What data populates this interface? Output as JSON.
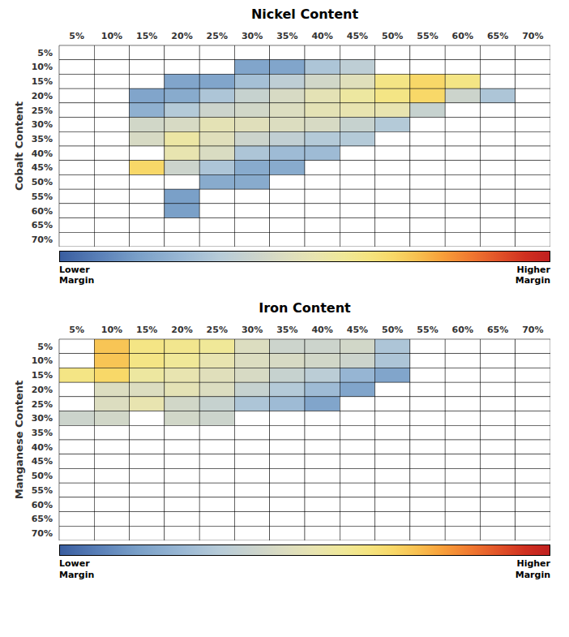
{
  "chart_data": [
    {
      "type": "heatmap",
      "title": "Nickel Content",
      "ylabel": "Cobalt Content",
      "categories": [
        "5%",
        "10%",
        "15%",
        "20%",
        "25%",
        "30%",
        "35%",
        "40%",
        "45%",
        "50%",
        "55%",
        "60%",
        "65%",
        "70%"
      ],
      "y_categories": [
        "5%",
        "10%",
        "15%",
        "20%",
        "25%",
        "30%",
        "35%",
        "40%",
        "45%",
        "50%",
        "55%",
        "60%",
        "65%",
        "70%"
      ],
      "values": [
        [
          null,
          null,
          null,
          null,
          null,
          null,
          null,
          null,
          null,
          null,
          null,
          null,
          null,
          null
        ],
        [
          null,
          null,
          null,
          null,
          null,
          0.18,
          0.18,
          0.3,
          0.35,
          null,
          null,
          null,
          null,
          null
        ],
        [
          null,
          null,
          null,
          0.18,
          0.18,
          0.28,
          0.35,
          0.42,
          0.48,
          0.62,
          0.68,
          0.62,
          null,
          null
        ],
        [
          null,
          null,
          0.18,
          0.2,
          0.3,
          0.38,
          0.44,
          0.5,
          0.56,
          0.62,
          0.68,
          0.4,
          0.3,
          null
        ],
        [
          null,
          null,
          0.22,
          0.32,
          0.4,
          0.42,
          0.46,
          0.5,
          0.52,
          0.52,
          0.38,
          null,
          null,
          null
        ],
        [
          null,
          null,
          0.42,
          0.44,
          0.5,
          0.48,
          0.46,
          0.44,
          0.38,
          0.32,
          null,
          null,
          null,
          null
        ],
        [
          null,
          null,
          0.44,
          0.55,
          0.48,
          0.4,
          0.36,
          0.32,
          0.32,
          null,
          null,
          null,
          null,
          null
        ],
        [
          null,
          null,
          null,
          0.52,
          0.45,
          0.3,
          0.26,
          0.26,
          null,
          null,
          null,
          null,
          null,
          null
        ],
        [
          null,
          null,
          0.68,
          0.4,
          0.3,
          0.2,
          0.2,
          null,
          null,
          null,
          null,
          null,
          null,
          null
        ],
        [
          null,
          null,
          null,
          null,
          0.2,
          0.2,
          null,
          null,
          null,
          null,
          null,
          null,
          null,
          null
        ],
        [
          null,
          null,
          null,
          0.16,
          null,
          null,
          null,
          null,
          null,
          null,
          null,
          null,
          null,
          null
        ],
        [
          null,
          null,
          null,
          0.16,
          null,
          null,
          null,
          null,
          null,
          null,
          null,
          null,
          null,
          null
        ],
        [
          null,
          null,
          null,
          null,
          null,
          null,
          null,
          null,
          null,
          null,
          null,
          null,
          null,
          null
        ],
        [
          null,
          null,
          null,
          null,
          null,
          null,
          null,
          null,
          null,
          null,
          null,
          null,
          null,
          null
        ]
      ],
      "colorscale": [
        [
          0.0,
          "#3a5ea0"
        ],
        [
          0.08,
          "#5a80b8"
        ],
        [
          0.16,
          "#7aa0c8"
        ],
        [
          0.25,
          "#9ab8d4"
        ],
        [
          0.33,
          "#b8ccd8"
        ],
        [
          0.4,
          "#ccd4cc"
        ],
        [
          0.46,
          "#dcddc0"
        ],
        [
          0.52,
          "#e8e4b0"
        ],
        [
          0.58,
          "#f0e898"
        ],
        [
          0.63,
          "#f5e480"
        ],
        [
          0.68,
          "#f8d868"
        ],
        [
          0.73,
          "#f8c050"
        ],
        [
          0.78,
          "#f8a03a"
        ],
        [
          0.84,
          "#f07830"
        ],
        [
          0.9,
          "#e05028"
        ],
        [
          0.95,
          "#d03020"
        ],
        [
          1.0,
          "#c02020"
        ]
      ],
      "colorbar": {
        "range": [
          0,
          1
        ],
        "label_low": "Lower\nMargin",
        "label_high": "Higher\nMargin"
      }
    },
    {
      "type": "heatmap",
      "title": "Iron Content",
      "ylabel": "Manganese Content",
      "categories": [
        "5%",
        "10%",
        "15%",
        "20%",
        "25%",
        "30%",
        "35%",
        "40%",
        "45%",
        "50%",
        "55%",
        "60%",
        "65%",
        "70%"
      ],
      "y_categories": [
        "5%",
        "10%",
        "15%",
        "20%",
        "25%",
        "30%",
        "35%",
        "40%",
        "45%",
        "50%",
        "55%",
        "60%",
        "65%",
        "70%"
      ],
      "values": [
        [
          null,
          0.72,
          0.62,
          0.6,
          0.58,
          0.46,
          0.4,
          0.4,
          0.42,
          0.3,
          null,
          null,
          null,
          null
        ],
        [
          null,
          0.72,
          0.62,
          0.58,
          0.52,
          0.46,
          0.44,
          0.42,
          0.4,
          0.3,
          null,
          null,
          null,
          null
        ],
        [
          0.62,
          0.68,
          0.56,
          0.52,
          0.48,
          0.44,
          0.38,
          0.34,
          0.24,
          0.18,
          null,
          null,
          null,
          null
        ],
        [
          null,
          0.46,
          0.46,
          0.5,
          0.46,
          0.38,
          0.32,
          0.26,
          0.18,
          null,
          null,
          null,
          null,
          null
        ],
        [
          null,
          0.46,
          0.52,
          0.42,
          0.38,
          0.3,
          0.26,
          0.18,
          null,
          null,
          null,
          null,
          null,
          null
        ],
        [
          0.4,
          0.42,
          null,
          0.42,
          0.4,
          null,
          null,
          null,
          null,
          null,
          null,
          null,
          null,
          null
        ],
        [
          null,
          null,
          null,
          null,
          null,
          null,
          null,
          null,
          null,
          null,
          null,
          null,
          null,
          null
        ],
        [
          null,
          null,
          null,
          null,
          null,
          null,
          null,
          null,
          null,
          null,
          null,
          null,
          null,
          null
        ],
        [
          null,
          null,
          null,
          null,
          null,
          null,
          null,
          null,
          null,
          null,
          null,
          null,
          null,
          null
        ],
        [
          null,
          null,
          null,
          null,
          null,
          null,
          null,
          null,
          null,
          null,
          null,
          null,
          null,
          null
        ],
        [
          null,
          null,
          null,
          null,
          null,
          null,
          null,
          null,
          null,
          null,
          null,
          null,
          null,
          null
        ],
        [
          null,
          null,
          null,
          null,
          null,
          null,
          null,
          null,
          null,
          null,
          null,
          null,
          null,
          null
        ],
        [
          null,
          null,
          null,
          null,
          null,
          null,
          null,
          null,
          null,
          null,
          null,
          null,
          null,
          null
        ],
        [
          null,
          null,
          null,
          null,
          null,
          null,
          null,
          null,
          null,
          null,
          null,
          null,
          null,
          null
        ]
      ],
      "colorscale": [
        [
          0.0,
          "#3a5ea0"
        ],
        [
          0.08,
          "#5a80b8"
        ],
        [
          0.16,
          "#7aa0c8"
        ],
        [
          0.25,
          "#9ab8d4"
        ],
        [
          0.33,
          "#b8ccd8"
        ],
        [
          0.4,
          "#ccd4cc"
        ],
        [
          0.46,
          "#dcddc0"
        ],
        [
          0.52,
          "#e8e4b0"
        ],
        [
          0.58,
          "#f0e898"
        ],
        [
          0.63,
          "#f5e480"
        ],
        [
          0.68,
          "#f8d868"
        ],
        [
          0.73,
          "#f8c050"
        ],
        [
          0.78,
          "#f8a03a"
        ],
        [
          0.84,
          "#f07830"
        ],
        [
          0.9,
          "#e05028"
        ],
        [
          0.95,
          "#d03020"
        ],
        [
          1.0,
          "#c02020"
        ]
      ],
      "colorbar": {
        "range": [
          0,
          1
        ],
        "label_low": "Lower\nMargin",
        "label_high": "Higher\nMargin"
      }
    }
  ]
}
